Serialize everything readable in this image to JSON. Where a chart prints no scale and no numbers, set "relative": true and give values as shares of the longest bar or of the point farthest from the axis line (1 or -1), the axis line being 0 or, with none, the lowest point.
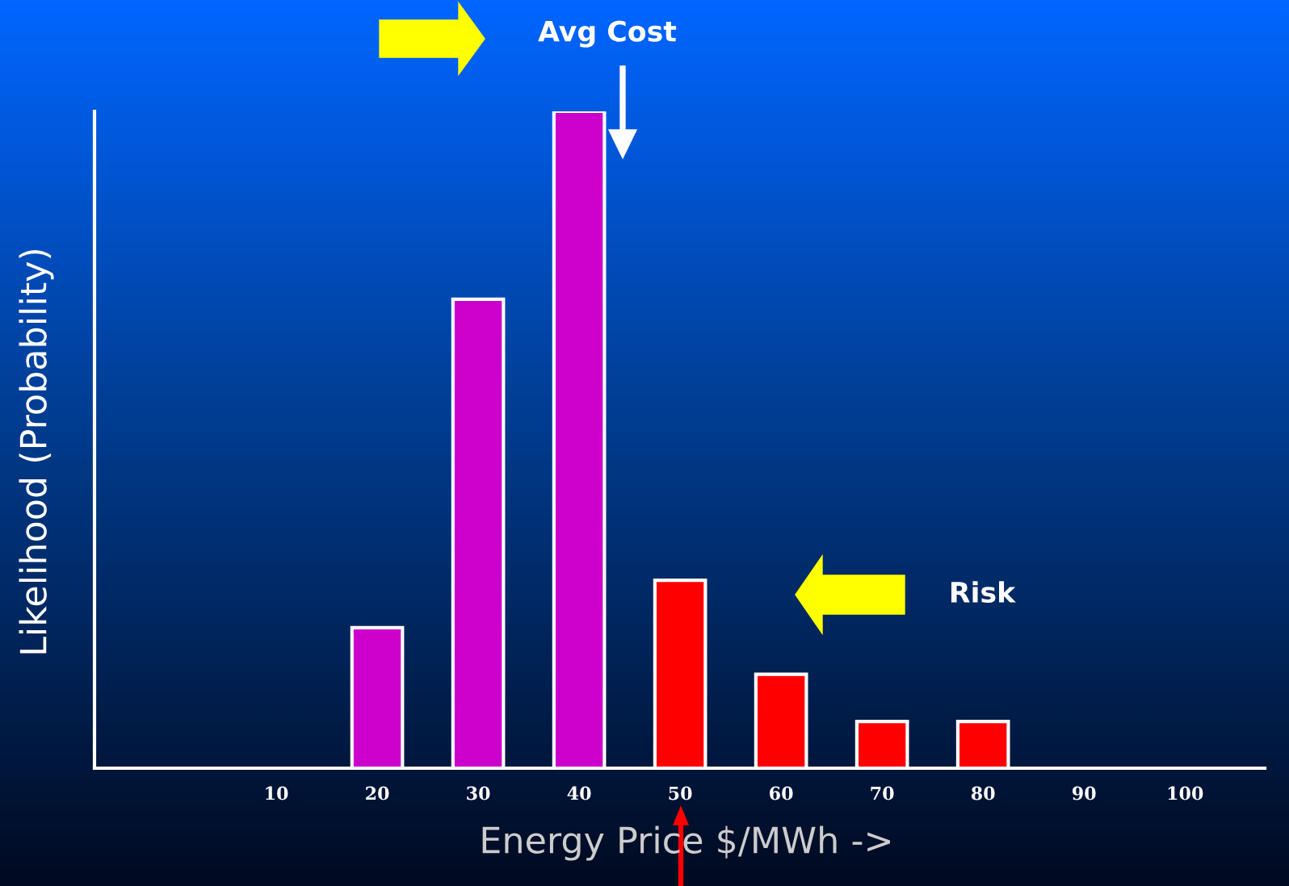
{
  "chart_data": {
    "type": "bar",
    "relative": true,
    "categories": [
      "10",
      "20",
      "30",
      "40",
      "50",
      "60",
      "70",
      "80",
      "90",
      "100"
    ],
    "values": [
      null,
      0.214,
      0.714,
      1,
      0.286,
      0.143,
      0.071,
      0.071,
      null,
      null
    ],
    "colors": [
      "#cc00cc",
      "#cc00cc",
      "#cc00cc",
      "#cc00cc",
      "#ff0000",
      "#ff0000",
      "#ff0000",
      "#ff0000",
      "#ff0000",
      "#ff0000"
    ],
    "xlabel": "Energy Price $/MWh ->",
    "ylabel": "Likelihood (Probability)",
    "annotations": [
      "Avg Cost",
      "Risk"
    ],
    "grid": false,
    "legend": false
  }
}
